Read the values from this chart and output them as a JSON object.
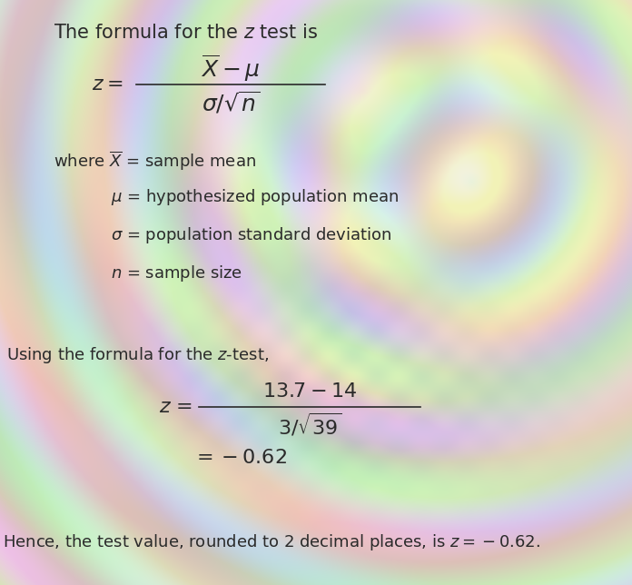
{
  "bg_base": "#d8d4c8",
  "bg_light": "#e8e4d8",
  "text_color": "#2a2a2a",
  "title": "The formula for the z test is",
  "using_line": "Using the formula for the z-test,",
  "conclusion": "Hence, the test value, rounded to 2 decimal places, is z = −0.62.",
  "font_size_title": 15,
  "font_size_body": 13,
  "font_size_formula": 16,
  "font_size_small": 12
}
